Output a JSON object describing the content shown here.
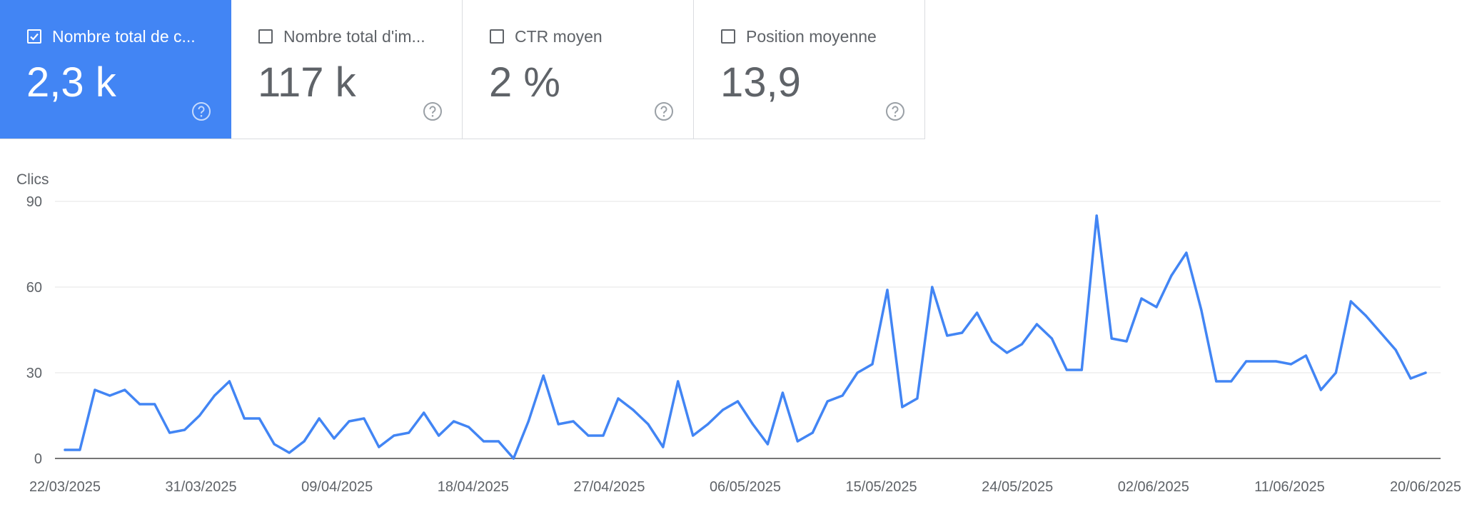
{
  "cards": [
    {
      "label": "Nombre total de c...",
      "value": "2,3 k",
      "checked": true
    },
    {
      "label": "Nombre total d'im...",
      "value": "117 k",
      "checked": false
    },
    {
      "label": "CTR moyen",
      "value": "2 %",
      "checked": false
    },
    {
      "label": "Position moyenne",
      "value": "13,9",
      "checked": false
    }
  ],
  "icons": {
    "checkbox": "checkbox-icon",
    "help": "help-circle-icon"
  },
  "colors": {
    "accent": "#4285f4",
    "line": "#4285f4",
    "gridline": "#eeeeee",
    "axis": "#757575"
  },
  "chart_data": {
    "type": "line",
    "ylabel": "Clics",
    "ylim": [
      0,
      90
    ],
    "yticks": [
      "0",
      "30",
      "60",
      "90"
    ],
    "x_tick_labels": [
      "22/03/2025",
      "31/03/2025",
      "09/04/2025",
      "18/04/2025",
      "27/04/2025",
      "06/05/2025",
      "15/05/2025",
      "24/05/2025",
      "02/06/2025",
      "11/06/2025",
      "20/06/2025"
    ],
    "x_start": "22/03/2025",
    "x_end": "20/06/2025",
    "grid": true,
    "series": [
      {
        "values": [
          3,
          3,
          24,
          22,
          24,
          19,
          19,
          9,
          10,
          15,
          22,
          27,
          14,
          14,
          5,
          2,
          6,
          14,
          7,
          13,
          14,
          4,
          8,
          9,
          16,
          8,
          13,
          11,
          6,
          6,
          0,
          13,
          29,
          12,
          13,
          8,
          8,
          21,
          17,
          12,
          4,
          27,
          8,
          12,
          17,
          20,
          12,
          5,
          23,
          6,
          9,
          20,
          22,
          30,
          33,
          59,
          18,
          21,
          60,
          43,
          44,
          51,
          41,
          37,
          40,
          47,
          42,
          31,
          31,
          85,
          42,
          41,
          56,
          53,
          64,
          72,
          52,
          27,
          27,
          34,
          34,
          34,
          33,
          36,
          24,
          30,
          55,
          50,
          44,
          38,
          28,
          30
        ]
      }
    ]
  }
}
